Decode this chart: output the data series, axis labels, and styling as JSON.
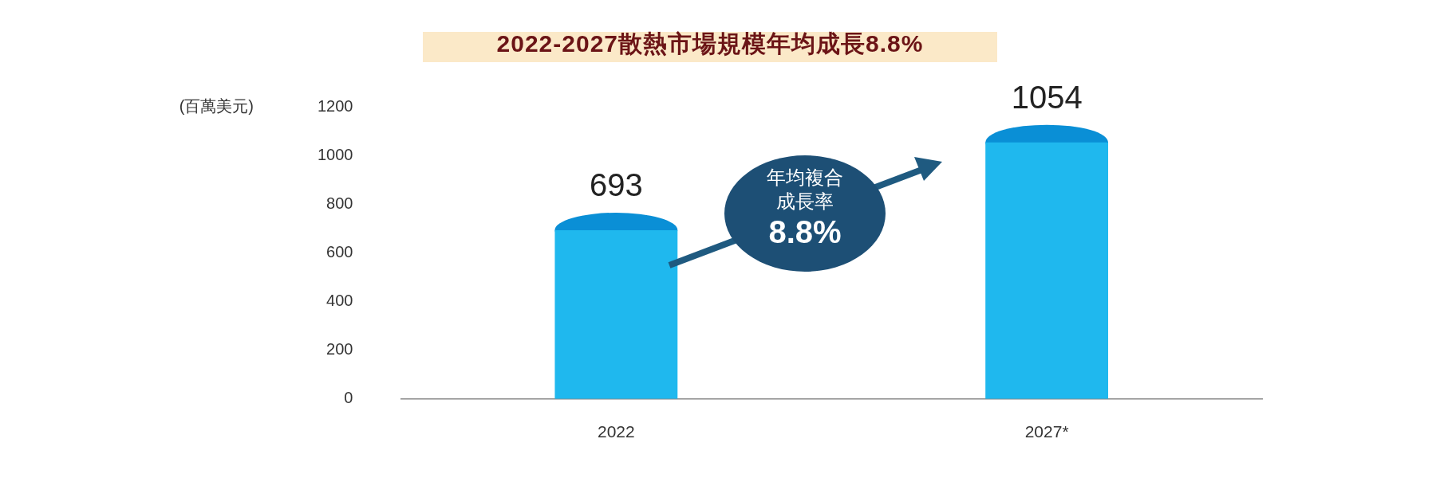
{
  "chart_data": {
    "type": "bar",
    "title": "2022-2027散熱市場規模年均成長8.8%",
    "ylabel": "(百萬美元)",
    "categories": [
      "2022",
      "2027*"
    ],
    "values": [
      693,
      1054
    ],
    "color": "#1fb8ee",
    "ylim": [
      0,
      1200
    ],
    "yticks": [
      0,
      200,
      400,
      600,
      800,
      1000,
      1200
    ],
    "data_labels": true,
    "annotations": [
      "年均複合",
      "成長率",
      "8.8%"
    ]
  }
}
